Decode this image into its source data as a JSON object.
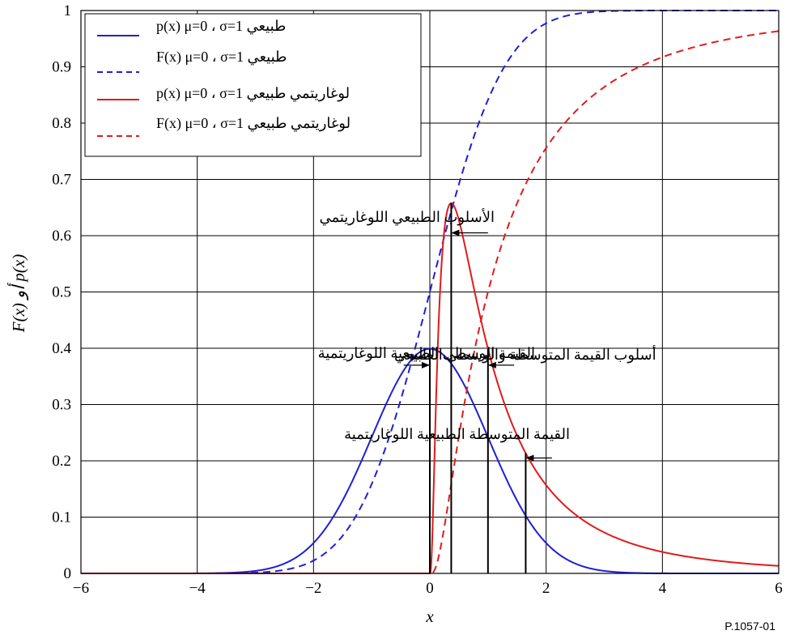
{
  "figure_id": "P.1057-01",
  "chart_data": {
    "type": "line",
    "xlabel": "x",
    "ylabel": "F(x) أو p(x)",
    "xlim": [
      -6,
      6
    ],
    "ylim": [
      0,
      1
    ],
    "x_ticks": [
      "−6",
      "−4",
      "−2",
      "0",
      "2",
      "4",
      "6"
    ],
    "x_tick_values": [
      -6,
      -4,
      -2,
      0,
      2,
      4,
      6
    ],
    "y_ticks": [
      "0",
      "0.1",
      "0.2",
      "0.3",
      "0.4",
      "0.5",
      "0.6",
      "0.7",
      "0.8",
      "0.9",
      "1"
    ],
    "y_tick_values": [
      0,
      0.1,
      0.2,
      0.3,
      0.4,
      0.5,
      0.6,
      0.7,
      0.8,
      0.9,
      1.0
    ],
    "grid": true,
    "legend_position": "top-left",
    "series": [
      {
        "name": "طبيعي p(x) μ=0 ، σ=1",
        "color": "#1f1fd6",
        "style": "solid",
        "function": "normal_pdf",
        "mu": 0,
        "sigma": 1
      },
      {
        "name": "طبيعي F(x) μ=0 ، σ=1",
        "color": "#1f1fd6",
        "style": "dashed",
        "function": "normal_cdf",
        "mu": 0,
        "sigma": 1
      },
      {
        "name": "لوغاريتمي طبيعي p(x) μ=0 ، σ=1",
        "color": "#e01b1b",
        "style": "solid",
        "function": "lognormal_pdf",
        "mu": 0,
        "sigma": 1
      },
      {
        "name": "لوغاريتمي طبيعي F(x) μ=0 ، σ=1",
        "color": "#e01b1b",
        "style": "dashed",
        "function": "lognormal_cdf",
        "mu": 0,
        "sigma": 1
      }
    ],
    "markers": [
      {
        "name": "lognormal-mode-line",
        "x": 0.3679,
        "y": 0.6577
      },
      {
        "name": "normal-mean-line",
        "x": 0,
        "y": 0.3989
      },
      {
        "name": "lognormal-median-line",
        "x": 1.0,
        "y": 0.3989
      },
      {
        "name": "lognormal-mean-line",
        "x": 1.6487,
        "y": 0.2137
      }
    ],
    "annotations": [
      {
        "name": "annotation-lognormal-mode",
        "text": "الأسلوب الطبيعي اللوغاريتمي",
        "arrow_to_x": 0.3679,
        "arrow_to_y": 0.605,
        "arrow_from_x": 1.0
      },
      {
        "name": "annotation-normal-mode-mean-median",
        "text": "أسلوب القيمة المتوسطة والوسطى الطبيعي",
        "arrow_to_x": 0.0,
        "arrow_to_y": 0.37,
        "arrow_from_x": -0.45
      },
      {
        "name": "annotation-lognormal-median",
        "text": "القيمة الوسطى الطبيعية اللوغاريتمية",
        "arrow_to_x": 1.0,
        "arrow_to_y": 0.37,
        "arrow_from_x": 1.45
      },
      {
        "name": "annotation-lognormal-mean",
        "text": "القيمة المتوسطة الطبيعية اللوغاريتمية",
        "arrow_to_x": 1.6487,
        "arrow_to_y": 0.205,
        "arrow_from_x": 2.1
      }
    ]
  }
}
